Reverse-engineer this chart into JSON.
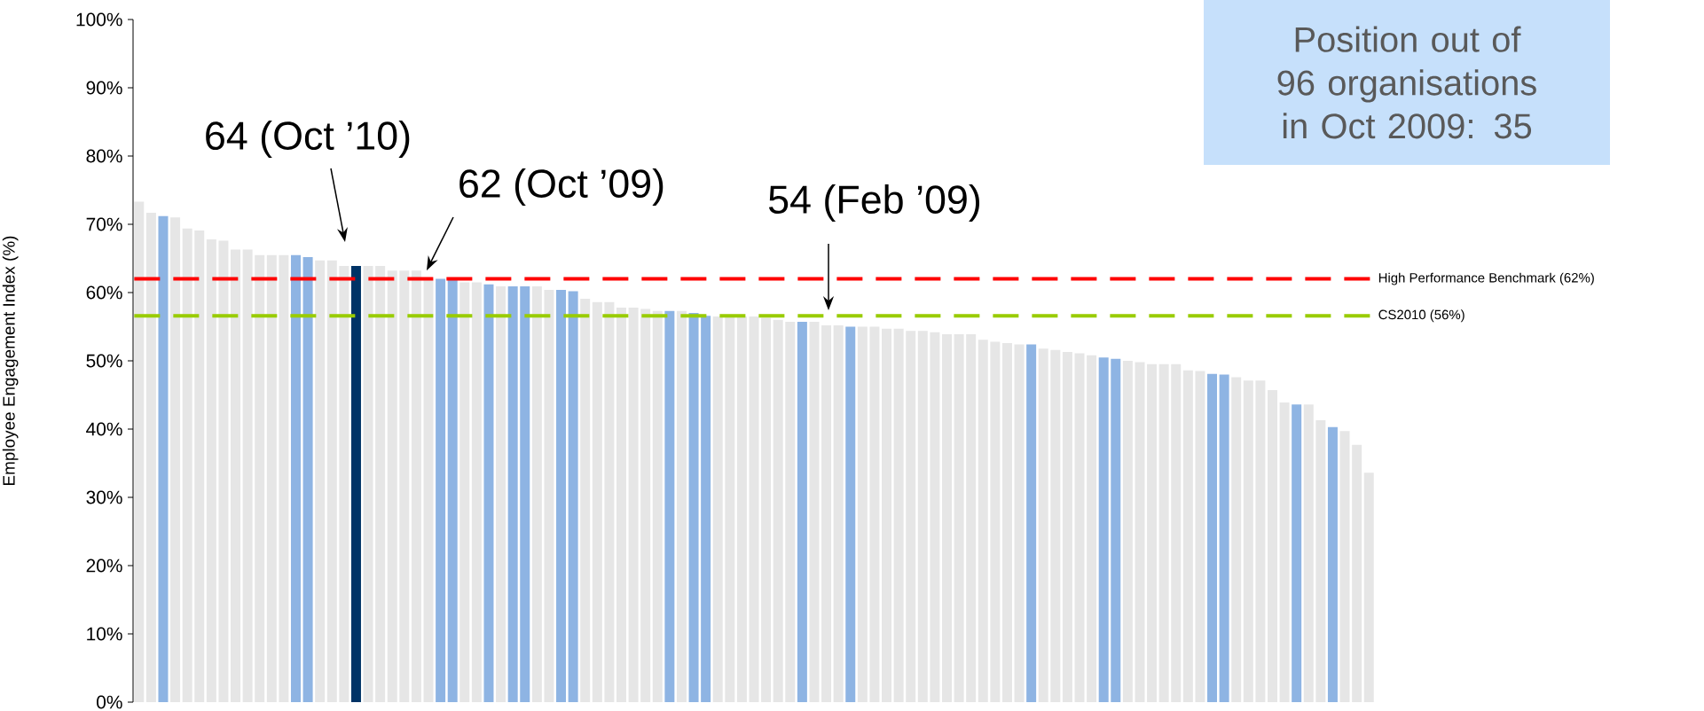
{
  "chart_data": {
    "type": "bar",
    "ylabel": "Employee Engagement Index (%)",
    "categories": [
      null,
      null,
      null,
      null,
      null,
      null,
      null,
      null,
      null,
      null,
      null,
      null,
      null,
      null,
      null,
      null,
      null,
      null,
      null,
      null,
      null,
      null,
      null,
      null,
      null,
      null,
      null,
      null,
      null,
      null,
      null,
      null,
      null,
      null,
      null,
      null,
      null,
      null,
      null,
      null,
      null,
      null,
      null,
      null,
      null,
      null,
      null,
      null,
      null,
      null,
      null,
      null,
      null,
      null,
      null,
      null,
      null,
      null,
      null,
      null,
      null,
      null,
      null,
      null,
      null,
      null,
      null,
      null,
      null,
      null,
      null,
      null,
      null,
      null,
      null,
      null,
      null,
      null,
      null,
      null,
      null,
      null,
      null,
      null,
      null,
      null,
      null,
      null,
      null,
      null,
      null,
      null,
      null,
      null,
      null,
      null,
      null,
      null,
      null,
      null,
      null,
      null,
      null
    ],
    "values": [
      73.3,
      71.7,
      71.2,
      71.0,
      69.4,
      69.1,
      67.8,
      67.6,
      66.3,
      66.3,
      65.5,
      65.5,
      65.5,
      65.5,
      65.2,
      64.7,
      64.7,
      63.9,
      63.9,
      63.9,
      63.9,
      63.2,
      63.2,
      63.2,
      62.0,
      62.0,
      61.9,
      61.5,
      61.5,
      61.2,
      60.9,
      60.9,
      60.9,
      60.9,
      60.4,
      60.4,
      60.2,
      59.1,
      58.6,
      58.6,
      57.8,
      57.8,
      57.6,
      57.3,
      57.3,
      57.3,
      57.0,
      56.6,
      56.5,
      56.5,
      56.5,
      56.5,
      56.3,
      56.0,
      55.7,
      55.7,
      55.7,
      55.2,
      55.2,
      55.0,
      55.0,
      55.0,
      54.7,
      54.7,
      54.4,
      54.4,
      54.2,
      53.9,
      53.9,
      53.9,
      53.1,
      52.8,
      52.6,
      52.4,
      52.4,
      51.8,
      51.6,
      51.3,
      51.1,
      50.8,
      50.5,
      50.3,
      50.0,
      49.8,
      49.5,
      49.5,
      49.5,
      48.6,
      48.5,
      48.1,
      48.0,
      47.6,
      47.1,
      47.1,
      45.7,
      43.9,
      43.6,
      43.6,
      41.3,
      40.3,
      39.7,
      37.7,
      33.6
    ],
    "colors": [
      "#e6e6e6",
      "#e6e6e6",
      "#8eb4e3",
      "#e6e6e6",
      "#e6e6e6",
      "#e6e6e6",
      "#e6e6e6",
      "#e6e6e6",
      "#e6e6e6",
      "#e6e6e6",
      "#e6e6e6",
      "#e6e6e6",
      "#e6e6e6",
      "#8eb4e3",
      "#8eb4e3",
      "#e6e6e6",
      "#e6e6e6",
      "#e6e6e6",
      "#003366",
      "#e6e6e6",
      "#e6e6e6",
      "#e6e6e6",
      "#e6e6e6",
      "#e6e6e6",
      "#e6e6e6",
      "#8eb4e3",
      "#8eb4e3",
      "#e6e6e6",
      "#e6e6e6",
      "#8eb4e3",
      "#e6e6e6",
      "#8eb4e3",
      "#8eb4e3",
      "#e6e6e6",
      "#e6e6e6",
      "#8eb4e3",
      "#8eb4e3",
      "#e6e6e6",
      "#e6e6e6",
      "#e6e6e6",
      "#e6e6e6",
      "#e6e6e6",
      "#e6e6e6",
      "#e6e6e6",
      "#8eb4e3",
      "#e6e6e6",
      "#8eb4e3",
      "#8eb4e3",
      "#e6e6e6",
      "#e6e6e6",
      "#e6e6e6",
      "#e6e6e6",
      "#e6e6e6",
      "#e6e6e6",
      "#e6e6e6",
      "#8eb4e3",
      "#e6e6e6",
      "#e6e6e6",
      "#e6e6e6",
      "#8eb4e3",
      "#e6e6e6",
      "#e6e6e6",
      "#e6e6e6",
      "#e6e6e6",
      "#e6e6e6",
      "#e6e6e6",
      "#e6e6e6",
      "#e6e6e6",
      "#e6e6e6",
      "#e6e6e6",
      "#e6e6e6",
      "#e6e6e6",
      "#e6e6e6",
      "#e6e6e6",
      "#8eb4e3",
      "#e6e6e6",
      "#e6e6e6",
      "#e6e6e6",
      "#e6e6e6",
      "#e6e6e6",
      "#8eb4e3",
      "#8eb4e3",
      "#e6e6e6",
      "#e6e6e6",
      "#e6e6e6",
      "#e6e6e6",
      "#e6e6e6",
      "#e6e6e6",
      "#e6e6e6",
      "#8eb4e3",
      "#8eb4e3",
      "#e6e6e6",
      "#e6e6e6",
      "#e6e6e6",
      "#e6e6e6",
      "#e6e6e6",
      "#8eb4e3",
      "#e6e6e6",
      "#e6e6e6",
      "#8eb4e3",
      "#e6e6e6",
      "#e6e6e6",
      "#e6e6e6"
    ],
    "ylim": [
      0,
      100
    ],
    "yticks": [
      {
        "value": 0,
        "label": "0%"
      },
      {
        "value": 10,
        "label": "10%"
      },
      {
        "value": 20,
        "label": "20%"
      },
      {
        "value": 30,
        "label": "30%"
      },
      {
        "value": 40,
        "label": "40%"
      },
      {
        "value": 50,
        "label": "50%"
      },
      {
        "value": 60,
        "label": "60%"
      },
      {
        "value": 70,
        "label": "70%"
      },
      {
        "value": 80,
        "label": "80%"
      },
      {
        "value": 90,
        "label": "90%"
      },
      {
        "value": 100,
        "label": "100%"
      }
    ],
    "ref_lines": [
      {
        "axis": "y",
        "value": 62,
        "label": "High Performance Benchmark (62%)",
        "color": "#ff0000",
        "line_style": "dashed"
      },
      {
        "axis": "y",
        "value": 56.6,
        "label": "CS2010 (56%)",
        "color": "#99cc00",
        "line_style": "dashed"
      }
    ],
    "annotations": [
      "64 (Oct ’10)",
      "62 (Oct ’09)",
      "54 (Feb ’09)",
      "Position out of 96 organisations in Oct 2009: 35"
    ]
  }
}
